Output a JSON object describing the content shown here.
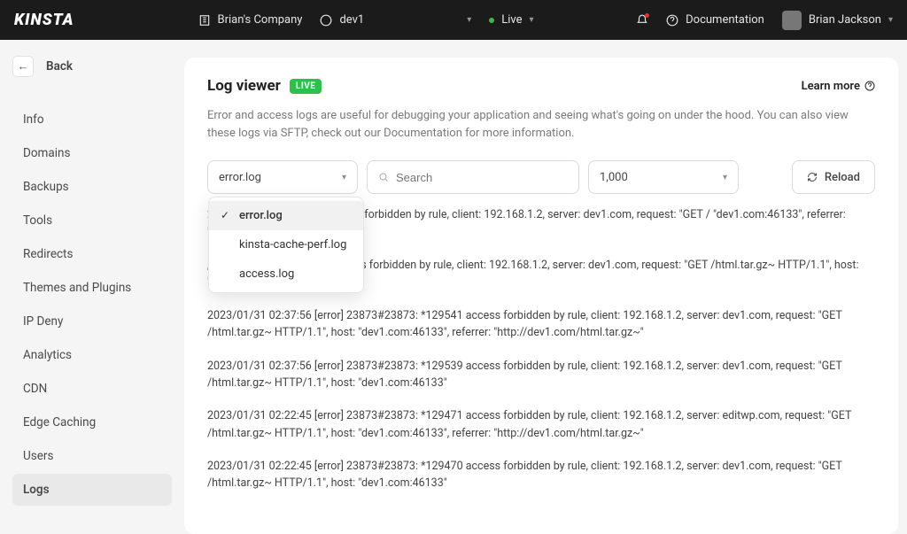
{
  "topbar": {
    "logo": "KINSTA",
    "company": "Brian's Company",
    "site": "dev1",
    "env": "Live",
    "documentation": "Documentation",
    "user": "Brian Jackson"
  },
  "sidebar": {
    "back": "Back",
    "items": [
      {
        "label": "Info",
        "active": false
      },
      {
        "label": "Domains",
        "active": false
      },
      {
        "label": "Backups",
        "active": false
      },
      {
        "label": "Tools",
        "active": false
      },
      {
        "label": "Redirects",
        "active": false
      },
      {
        "label": "Themes and Plugins",
        "active": false
      },
      {
        "label": "IP Deny",
        "active": false
      },
      {
        "label": "Analytics",
        "active": false
      },
      {
        "label": "CDN",
        "active": false
      },
      {
        "label": "Edge Caching",
        "active": false
      },
      {
        "label": "Users",
        "active": false
      },
      {
        "label": "Logs",
        "active": true
      }
    ]
  },
  "page": {
    "title": "Log viewer",
    "live_badge": "LIVE",
    "learn_more": "Learn more",
    "description": "Error and access logs are useful for debugging your application and seeing what's going on under the hood. You can also view these logs via SFTP, check out our Documentation for more information."
  },
  "controls": {
    "log_select": {
      "value": "error.log",
      "options": [
        {
          "label": "error.log",
          "selected": true
        },
        {
          "label": "kinsta-cache-perf.log",
          "selected": false
        },
        {
          "label": "access.log",
          "selected": false
        }
      ]
    },
    "search_placeholder": "Search",
    "count_value": "1,000",
    "reload": "Reload"
  },
  "logs": [
    "23873#23873: *129596 access forbidden by rule, client: 192.168.1.2, server: dev1.com, request: \"GET /                                                                     \"dev1.com:46133\", referrer: \"http://dev1.com/html.tar.gz~\"",
    ", 23873#23873: *129594 access forbidden by rule, client: 192.168.1.2, server: dev1.com, request: \"GET /html.tar.gz~ HTTP/1.1\", host: \"dev1.com:46133\"",
    "2023/01/31 02:37:56 [error] 23873#23873: *129541 access forbidden by rule, client: 192.168.1.2, server: dev1.com, request: \"GET /html.tar.gz~ HTTP/1.1\", host: \"dev1.com:46133\", referrer: \"http://dev1.com/html.tar.gz~\"",
    "2023/01/31 02:37:56 [error] 23873#23873: *129539 access forbidden by rule, client: 192.168.1.2, server: dev1.com, request: \"GET /html.tar.gz~ HTTP/1.1\", host: \"dev1.com:46133\"",
    "2023/01/31 02:22:45 [error] 23873#23873: *129471 access forbidden by rule, client: 192.168.1.2, server: editwp.com, request: \"GET /html.tar.gz~ HTTP/1.1\", host: \"dev1.com:46133\", referrer: \"http://dev1.com/html.tar.gz~\"",
    "2023/01/31 02:22:45 [error] 23873#23873: *129470 access forbidden by rule, client: 192.168.1.2, server: dev1.com, request: \"GET /html.tar.gz~ HTTP/1.1\", host: \"dev1.com:46133\""
  ],
  "colors": {
    "topbar_bg": "#1b1b1b",
    "page_bg": "#f5f5f6",
    "card_bg": "#ffffff",
    "live_badge_bg": "#2fbf4c",
    "border": "#dadada",
    "text_muted": "#7a7a7a",
    "nav_active_bg": "#e9e9ea"
  }
}
